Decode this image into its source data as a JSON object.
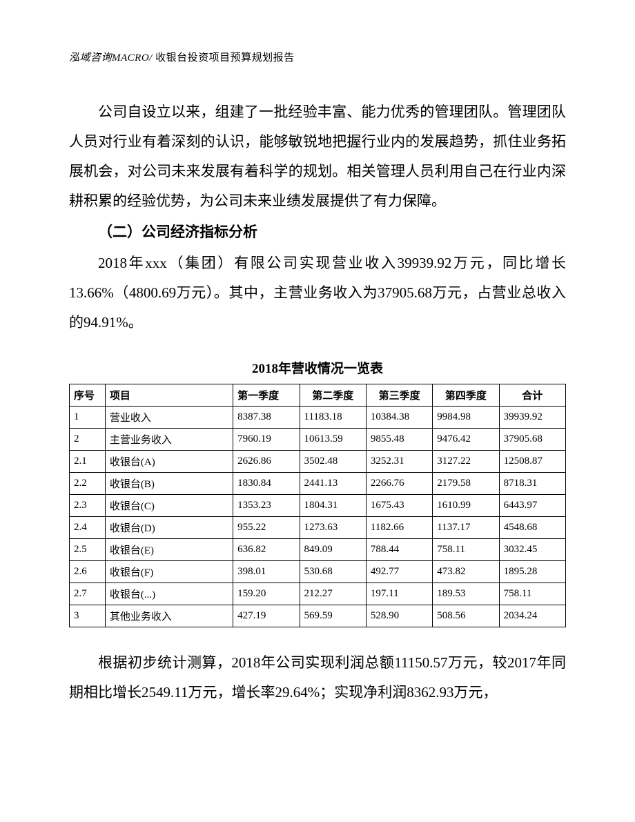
{
  "header": {
    "company": "泓域咨询MACRO/",
    "title": "收银台投资项目预算规划报告"
  },
  "paragraph1": "公司自设立以来，组建了一批经验丰富、能力优秀的管理团队。管理团队人员对行业有着深刻的认识，能够敏锐地把握行业内的发展趋势，抓住业务拓展机会，对公司未来发展有着科学的规划。相关管理人员利用自己在行业内深耕积累的经验优势，为公司未来业绩发展提供了有力保障。",
  "sectionHeading": "（二）公司经济指标分析",
  "paragraph2": "2018年xxx（集团）有限公司实现营业收入39939.92万元，同比增长13.66%（4800.69万元）。其中，主营业务收入为37905.68万元，占营业总收入的94.91%。",
  "table": {
    "title": "2018年营收情况一览表",
    "columns": [
      "序号",
      "项目",
      "第一季度",
      "第二季度",
      "第三季度",
      "第四季度",
      "合计"
    ],
    "column_widths": [
      "7%",
      "25%",
      "13%",
      "13%",
      "13%",
      "13%",
      "13%"
    ],
    "column_align": [
      "left",
      "left",
      "left",
      "center",
      "center",
      "center",
      "center"
    ],
    "border_color": "#000000",
    "font_size": 15,
    "rows": [
      [
        "1",
        "营业收入",
        "8387.38",
        "11183.18",
        "10384.38",
        "9984.98",
        "39939.92"
      ],
      [
        "2",
        "主营业务收入",
        "7960.19",
        "10613.59",
        "9855.48",
        "9476.42",
        "37905.68"
      ],
      [
        "2.1",
        "收银台(A)",
        "2626.86",
        "3502.48",
        "3252.31",
        "3127.22",
        "12508.87"
      ],
      [
        "2.2",
        "收银台(B)",
        "1830.84",
        "2441.13",
        "2266.76",
        "2179.58",
        "8718.31"
      ],
      [
        "2.3",
        "收银台(C)",
        "1353.23",
        "1804.31",
        "1675.43",
        "1610.99",
        "6443.97"
      ],
      [
        "2.4",
        "收银台(D)",
        "955.22",
        "1273.63",
        "1182.66",
        "1137.17",
        "4548.68"
      ],
      [
        "2.5",
        "收银台(E)",
        "636.82",
        "849.09",
        "788.44",
        "758.11",
        "3032.45"
      ],
      [
        "2.6",
        "收银台(F)",
        "398.01",
        "530.68",
        "492.77",
        "473.82",
        "1895.28"
      ],
      [
        "2.7",
        "收银台(...)",
        "159.20",
        "212.27",
        "197.11",
        "189.53",
        "758.11"
      ],
      [
        "3",
        "其他业务收入",
        "427.19",
        "569.59",
        "528.90",
        "508.56",
        "2034.24"
      ]
    ]
  },
  "paragraph3": "根据初步统计测算，2018年公司实现利润总额11150.57万元，较2017年同期相比增长2549.11万元，增长率29.64%；实现净利润8362.93万元，"
}
